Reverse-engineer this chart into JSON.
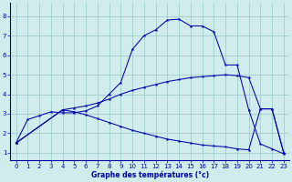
{
  "xlabel": "Graphe des températures (°c)",
  "bg_color": "#d0ecec",
  "grid_color": "#9ecece",
  "line_color": "#0000aa",
  "xlim": [
    -0.5,
    23.5
  ],
  "ylim": [
    0.6,
    8.7
  ],
  "xticks": [
    0,
    1,
    2,
    3,
    4,
    5,
    6,
    7,
    8,
    9,
    10,
    11,
    12,
    13,
    14,
    15,
    16,
    17,
    18,
    19,
    20,
    21,
    22,
    23
  ],
  "yticks": [
    1,
    2,
    3,
    4,
    5,
    6,
    7,
    8
  ],
  "line1_x": [
    0,
    1,
    2,
    3,
    4,
    5,
    6,
    7,
    8,
    9,
    10,
    11,
    12,
    13,
    14,
    15,
    16,
    17,
    18,
    19,
    20,
    21,
    22,
    23
  ],
  "line1_y": [
    1.5,
    2.7,
    2.9,
    3.1,
    3.05,
    3.05,
    3.15,
    3.4,
    4.0,
    4.6,
    6.3,
    7.0,
    7.3,
    7.8,
    7.85,
    7.5,
    7.5,
    7.2,
    5.5,
    5.5,
    3.2,
    1.45,
    1.2,
    0.95
  ],
  "line2_x": [
    0,
    4,
    5,
    6,
    7,
    8,
    9,
    10,
    11,
    12,
    13,
    14,
    15,
    16,
    17,
    18,
    19,
    20,
    21,
    22,
    23
  ],
  "line2_y": [
    1.5,
    3.2,
    3.3,
    3.4,
    3.55,
    3.75,
    4.0,
    4.2,
    4.35,
    4.5,
    4.65,
    4.75,
    4.85,
    4.9,
    4.95,
    5.0,
    4.95,
    4.85,
    3.25,
    3.25,
    1.0
  ],
  "line3_x": [
    0,
    4,
    5,
    6,
    7,
    8,
    9,
    10,
    11,
    12,
    13,
    14,
    15,
    16,
    17,
    18,
    19,
    20,
    21,
    22,
    23
  ],
  "line3_y": [
    1.5,
    3.2,
    3.1,
    2.95,
    2.75,
    2.55,
    2.35,
    2.15,
    2.0,
    1.85,
    1.7,
    1.6,
    1.5,
    1.4,
    1.35,
    1.3,
    1.2,
    1.15,
    3.25,
    3.25,
    1.0
  ]
}
